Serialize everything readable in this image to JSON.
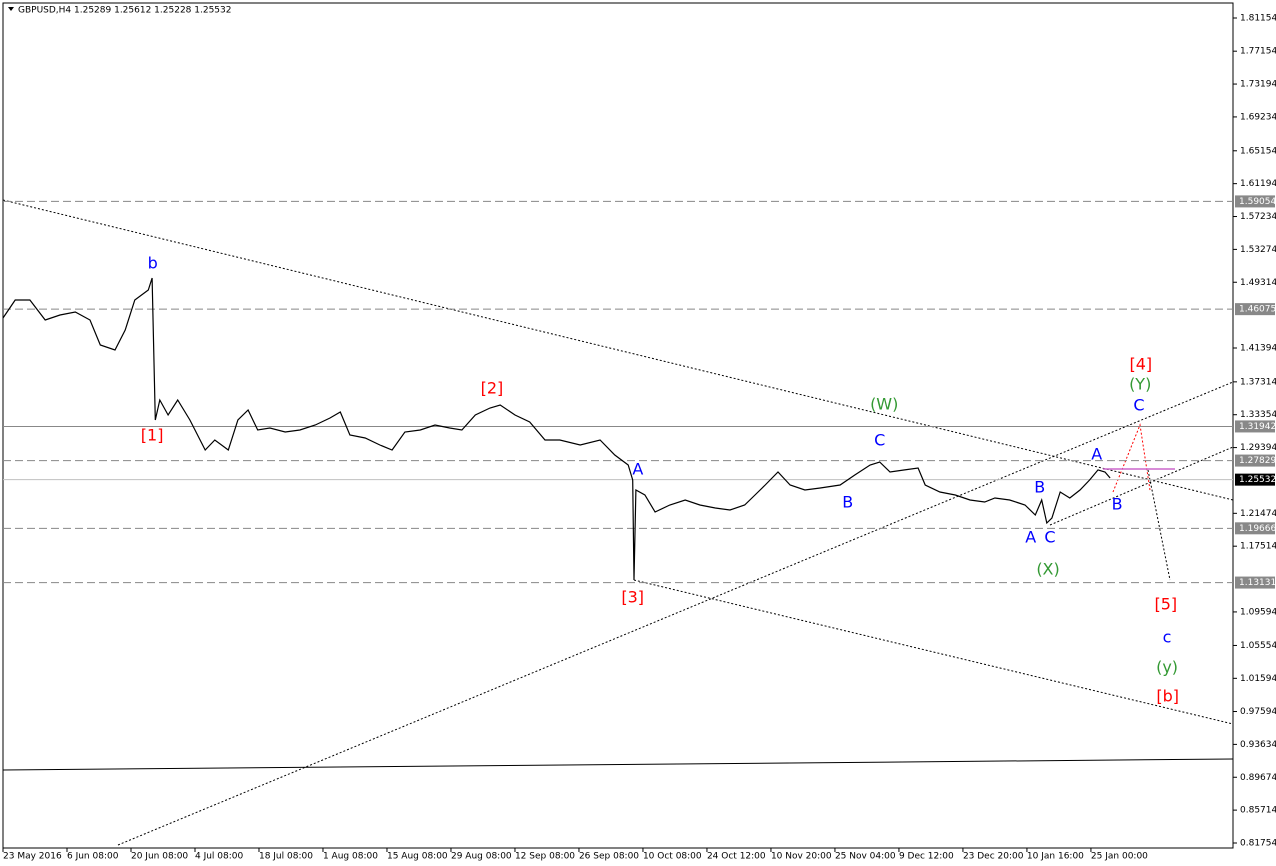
{
  "chart_data": {
    "type": "line",
    "title": "GBPUSD,H4  1.25289 1.25612 1.25228 1.25532",
    "color": "#000000",
    "x": [
      0,
      0.19,
      0.42,
      0.66,
      0.89,
      1.13,
      1.36,
      1.52,
      1.75,
      1.91,
      2.06,
      2.27,
      2.33,
      2.38,
      2.45,
      2.58,
      2.73,
      2.92,
      3.16,
      3.31,
      3.52,
      3.67,
      3.83,
      3.98,
      4.17,
      4.41,
      4.64,
      4.88,
      5.11,
      5.27,
      5.42,
      5.66,
      5.89,
      6.08,
      6.28,
      6.52,
      6.75,
      6.98,
      7.17,
      7.38,
      7.61,
      7.77,
      8.0,
      8.23,
      8.47,
      8.7,
      9.02,
      9.33,
      9.56,
      9.77,
      9.84,
      9.86,
      9.89,
      10.03,
      10.19,
      10.42,
      10.66,
      10.89,
      11.13,
      11.36,
      11.59,
      11.75,
      11.91,
      12.11,
      12.3,
      12.53,
      12.77,
      13.08,
      13.31,
      13.55,
      13.7,
      13.86,
      14.09,
      14.3,
      14.41,
      14.64,
      14.88,
      15.11,
      15.34,
      15.5,
      15.73,
      15.97,
      16.13,
      16.23,
      16.31,
      16.39,
      16.52,
      16.67,
      16.83,
      16.98,
      17.11,
      17.22,
      17.3
    ],
    "values": [
      1.4501,
      1.4718,
      1.4718,
      1.4477,
      1.4537,
      1.4573,
      1.4477,
      1.4175,
      1.4115,
      1.4356,
      1.4718,
      1.4838,
      1.4983,
      1.3272,
      1.3513,
      1.3332,
      1.3513,
      1.3272,
      1.291,
      1.3031,
      1.291,
      1.3272,
      1.3392,
      1.3151,
      1.3175,
      1.3127,
      1.3151,
      1.3212,
      1.3296,
      1.3368,
      1.3091,
      1.3055,
      1.2971,
      1.291,
      1.3127,
      1.3151,
      1.3212,
      1.3175,
      1.3151,
      1.3332,
      1.3416,
      1.3453,
      1.3332,
      1.3248,
      1.3031,
      1.3031,
      1.2971,
      1.3031,
      1.285,
      1.273,
      1.2549,
      1.1344,
      1.2428,
      1.2368,
      1.2163,
      1.2248,
      1.2308,
      1.2248,
      1.2212,
      1.2188,
      1.2248,
      1.2368,
      1.2489,
      1.2645,
      1.2489,
      1.2428,
      1.2453,
      1.2489,
      1.2609,
      1.273,
      1.2766,
      1.2645,
      1.267,
      1.2694,
      1.2489,
      1.2404,
      1.2368,
      1.2308,
      1.2284,
      1.2332,
      1.2308,
      1.2248,
      1.2127,
      1.2308,
      1.2031,
      1.2091,
      1.2404,
      1.2332,
      1.2428,
      1.2549,
      1.267,
      1.2645,
      1.2573
    ],
    "xlim": [
      0,
      19.22
    ],
    "xticks": [
      {
        "value": 0,
        "label": "23 May 2016"
      },
      {
        "value": 1,
        "label": "6 Jun 08:00"
      },
      {
        "value": 2,
        "label": "20 Jun 08:00"
      },
      {
        "value": 3,
        "label": "4 Jul 08:00"
      },
      {
        "value": 4,
        "label": "18 Jul 08:00"
      },
      {
        "value": 5,
        "label": "1 Aug 08:00"
      },
      {
        "value": 6,
        "label": "15 Aug 08:00"
      },
      {
        "value": 7,
        "label": "29 Aug 08:00"
      },
      {
        "value": 8,
        "label": "12 Sep 08:00"
      },
      {
        "value": 9,
        "label": "26 Sep 08:00"
      },
      {
        "value": 10,
        "label": "10 Oct 08:00"
      },
      {
        "value": 11,
        "label": "24 Oct 12:00"
      },
      {
        "value": 12,
        "label": "10 Nov 20:00"
      },
      {
        "value": 13,
        "label": "25 Nov 04:00"
      },
      {
        "value": 14,
        "label": "9 Dec 12:00"
      },
      {
        "value": 15,
        "label": "23 Dec 20:00"
      },
      {
        "value": 16,
        "label": "10 Jan 16:00"
      },
      {
        "value": 17,
        "label": "25 Jan 00:00"
      }
    ],
    "ylim": [
      0.8115,
      1.8296
    ],
    "yticks": [
      1.81154,
      1.77154,
      1.73194,
      1.69234,
      1.65154,
      1.61194,
      1.57234,
      1.53274,
      1.49314,
      1.41394,
      1.37314,
      1.33354,
      1.29394,
      1.21474,
      1.17514,
      1.09594,
      1.05554,
      1.01594,
      0.97594,
      0.93634,
      0.89674,
      0.85714,
      0.81754
    ],
    "levels": [
      {
        "value": 1.59054,
        "style": "dashed",
        "color": "#888888"
      },
      {
        "value": 1.46075,
        "style": "dashed",
        "color": "#888888"
      },
      {
        "value": 1.31942,
        "style": "solid",
        "color": "#888888"
      },
      {
        "value": 1.27829,
        "style": "dashed",
        "color": "#888888"
      },
      {
        "value": 1.25532,
        "style": "current",
        "color": "#c0c0c0"
      },
      {
        "value": 1.19666,
        "style": "dashed",
        "color": "#888888"
      },
      {
        "value": 1.13131,
        "style": "dashed",
        "color": "#888888"
      }
    ],
    "annotations": [
      {
        "text": "b",
        "x": 2.34,
        "y": 1.5151,
        "color": "#0000ff"
      },
      {
        "text": "[1]",
        "x": 2.33,
        "y": 1.3079,
        "color": "#ff0000"
      },
      {
        "text": "[2]",
        "x": 7.64,
        "y": 1.3645,
        "color": "#ff0000"
      },
      {
        "text": "[3]",
        "x": 9.84,
        "y": 1.1127,
        "color": "#ff0000"
      },
      {
        "text": "A",
        "x": 9.92,
        "y": 1.2669,
        "color": "#0000ff"
      },
      {
        "text": "(W)",
        "x": 13.77,
        "y": 1.3453,
        "color": "#339933"
      },
      {
        "text": "C",
        "x": 13.7,
        "y": 1.3019,
        "color": "#0000ff"
      },
      {
        "text": "B",
        "x": 13.2,
        "y": 1.2272,
        "color": "#0000ff"
      },
      {
        "text": "A",
        "x": 16.06,
        "y": 1.185,
        "color": "#0000ff"
      },
      {
        "text": "B",
        "x": 16.2,
        "y": 1.2453,
        "color": "#0000ff"
      },
      {
        "text": "C",
        "x": 16.36,
        "y": 1.185,
        "color": "#0000ff"
      },
      {
        "text": "(X)",
        "x": 16.33,
        "y": 1.1465,
        "color": "#339933"
      },
      {
        "text": "A",
        "x": 17.09,
        "y": 1.285,
        "color": "#0000ff"
      },
      {
        "text": "B",
        "x": 17.41,
        "y": 1.2248,
        "color": "#0000ff"
      },
      {
        "text": "C",
        "x": 17.75,
        "y": 1.3441,
        "color": "#0000ff"
      },
      {
        "text": "(Y)",
        "x": 17.77,
        "y": 1.3694,
        "color": "#339933"
      },
      {
        "text": "[4]",
        "x": 17.78,
        "y": 1.3934,
        "color": "#ff0000"
      },
      {
        "text": "[5]",
        "x": 18.17,
        "y": 1.1043,
        "color": "#ff0000"
      },
      {
        "text": "c",
        "x": 18.19,
        "y": 1.0646,
        "color": "#0000ff"
      },
      {
        "text": "(y)",
        "x": 18.19,
        "y": 1.0284,
        "color": "#339933"
      },
      {
        "text": "[b]",
        "x": 18.2,
        "y": 0.9935,
        "color": "#ff0000"
      }
    ]
  }
}
